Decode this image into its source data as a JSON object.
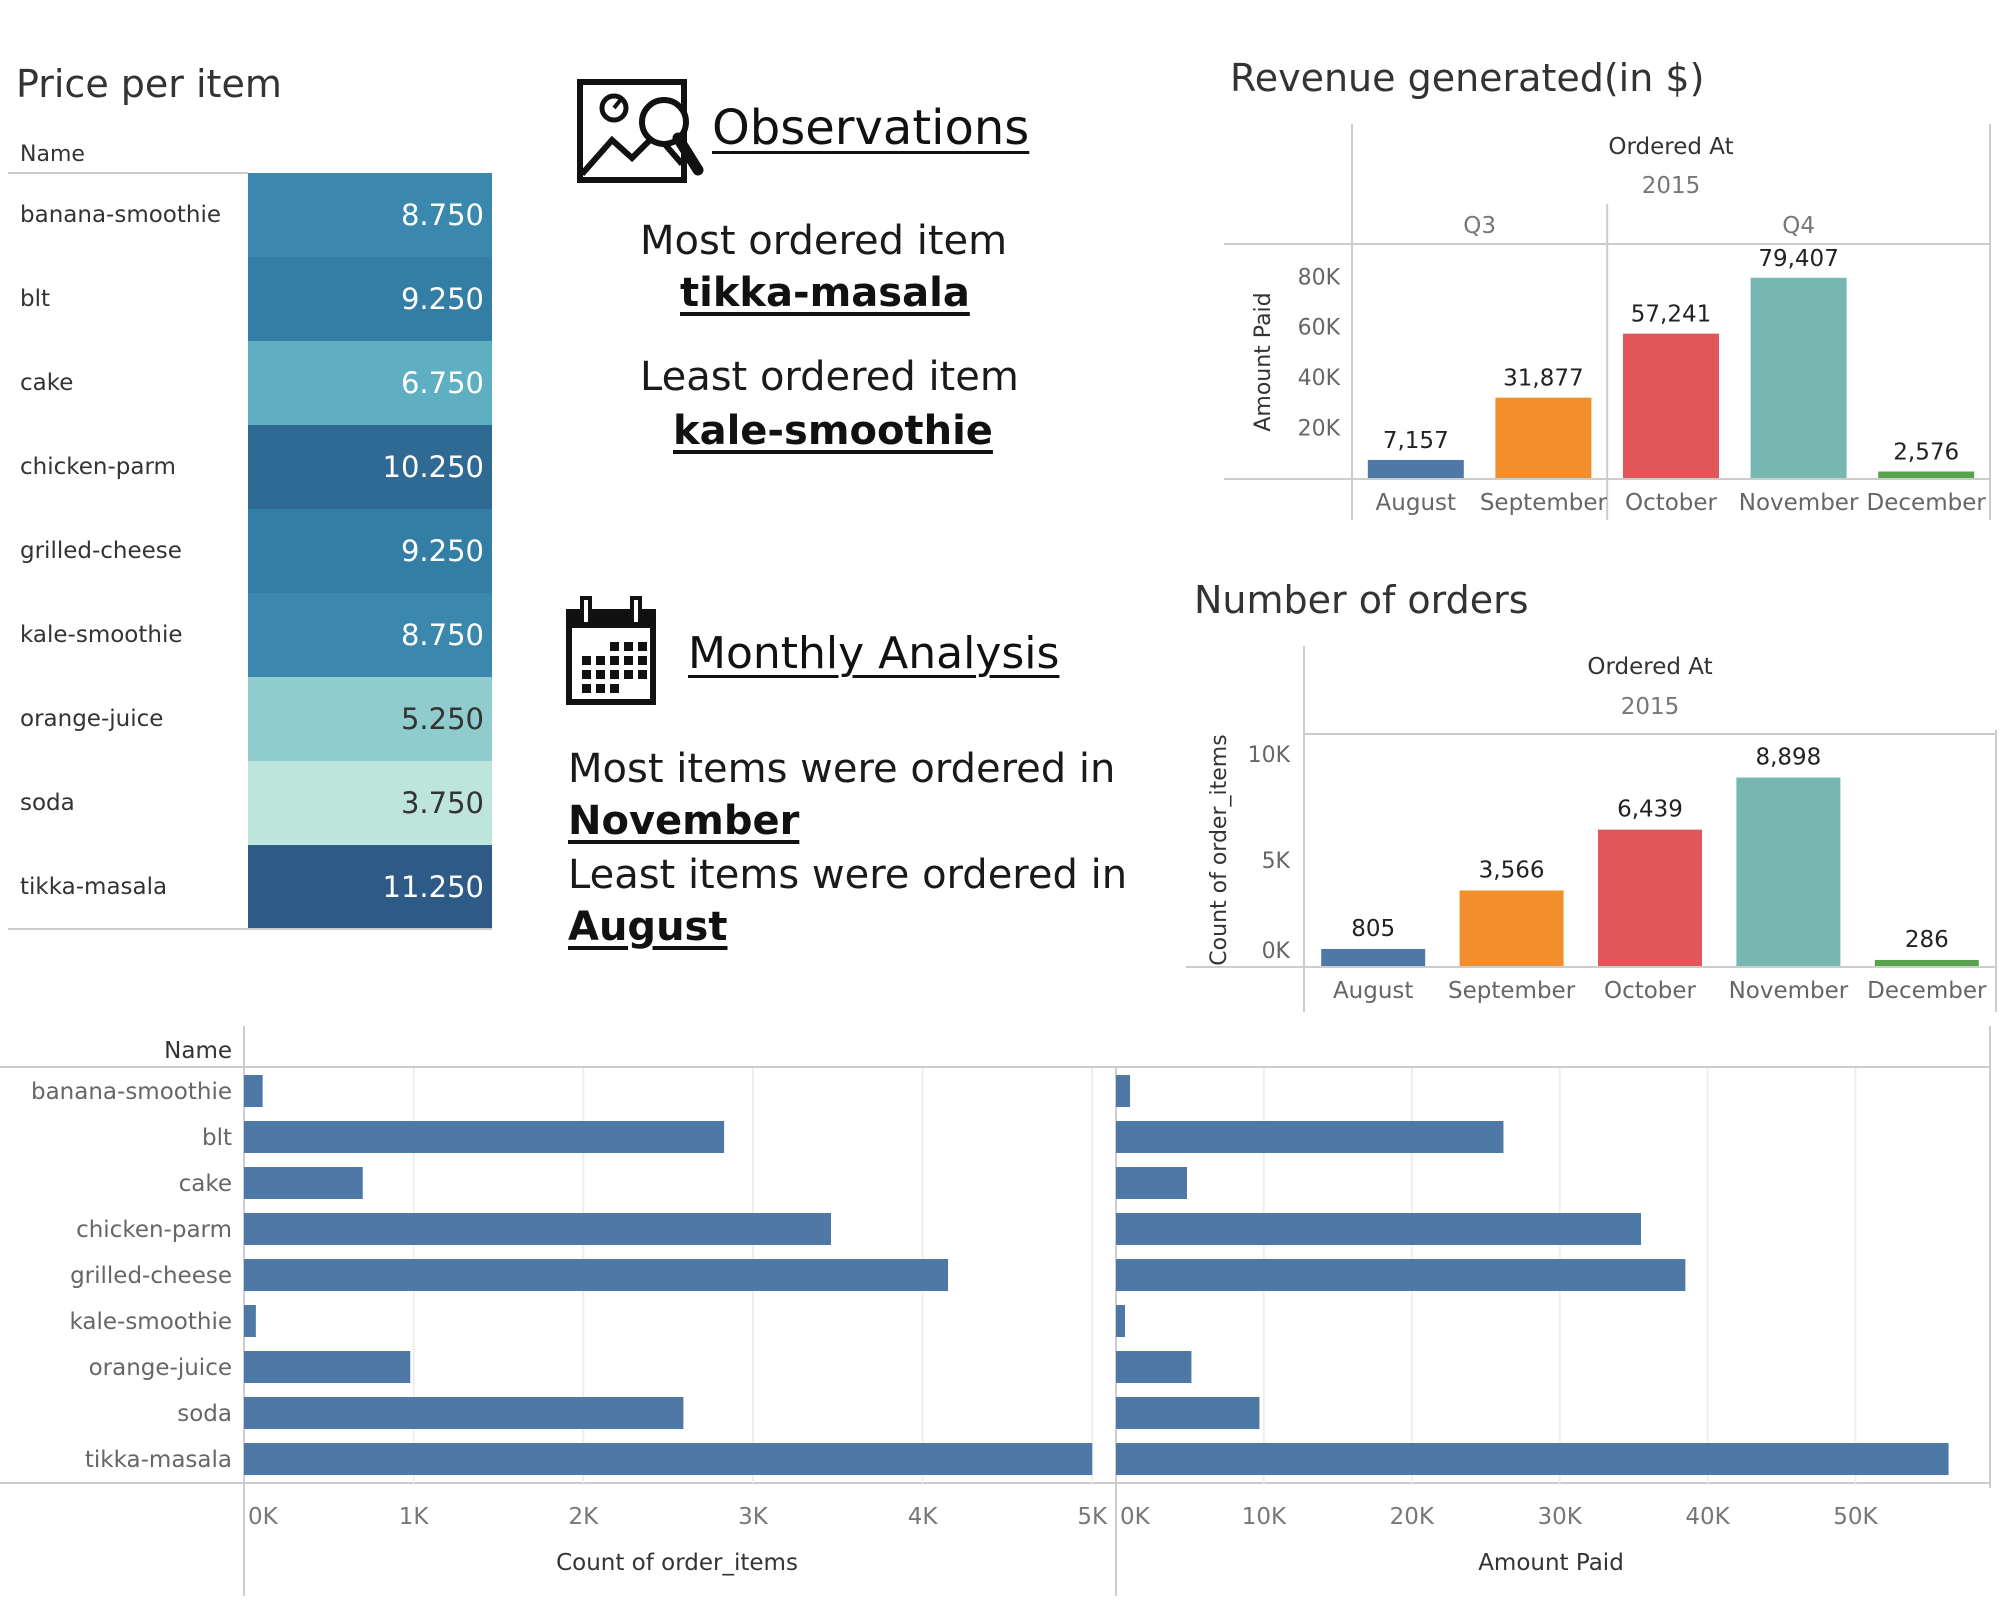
{
  "price_panel": {
    "title": "Price per item",
    "column_header": "Name",
    "rows": [
      {
        "name": "banana-smoothie",
        "price": "8.750",
        "color": "#3a88ad",
        "text_dark": false
      },
      {
        "name": "blt",
        "price": "9.250",
        "color": "#327ea4",
        "text_dark": false
      },
      {
        "name": "cake",
        "price": "6.750",
        "color": "#5fafc2",
        "text_dark": false
      },
      {
        "name": "chicken-parm",
        "price": "10.250",
        "color": "#2f6a95",
        "text_dark": false
      },
      {
        "name": "grilled-cheese",
        "price": "9.250",
        "color": "#327ea4",
        "text_dark": false
      },
      {
        "name": "kale-smoothie",
        "price": "8.750",
        "color": "#3a88ad",
        "text_dark": false
      },
      {
        "name": "orange-juice",
        "price": "5.250",
        "color": "#8ecccd",
        "text_dark": true
      },
      {
        "name": "soda",
        "price": "3.750",
        "color": "#bde5dc",
        "text_dark": true
      },
      {
        "name": "tikka-masala",
        "price": "11.250",
        "color": "#2d5a86",
        "text_dark": false
      }
    ]
  },
  "observations": {
    "heading": "Observations",
    "icon": "image-search-icon",
    "most_label": "Most ordered item",
    "most_value": "tikka-masala",
    "least_label": "Least ordered item",
    "least_value": "kale-smoothie"
  },
  "monthly": {
    "heading": "Monthly Analysis",
    "icon": "calendar-icon",
    "most_label": "Most items were ordered in",
    "most_value": "November",
    "least_label": "Least items were ordered in",
    "least_value": "August"
  },
  "chart_data": [
    {
      "id": "revenue",
      "type": "bar",
      "title": "Revenue generated(in $)",
      "header": "Ordered At",
      "year": "2015",
      "groups": [
        {
          "label": "Q3",
          "categories": [
            "August",
            "September"
          ]
        },
        {
          "label": "Q4",
          "categories": [
            "October",
            "November",
            "December"
          ]
        }
      ],
      "categories": [
        "August",
        "September",
        "October",
        "November",
        "December"
      ],
      "values": [
        7157,
        31877,
        57241,
        79407,
        2576
      ],
      "value_labels": [
        "7,157",
        "31,877",
        "57,241",
        "79,407",
        "2,576"
      ],
      "colors": [
        "#4e79a7",
        "#f28e2b",
        "#e15759",
        "#76b7b2",
        "#59a14f"
      ],
      "ylabel": "Amount Paid",
      "ylim": [
        0,
        92000
      ],
      "yticks": [
        20000,
        40000,
        60000,
        80000
      ],
      "ytick_labels": [
        "20K",
        "40K",
        "60K",
        "80K"
      ]
    },
    {
      "id": "orders",
      "type": "bar",
      "title": "Number of orders",
      "header": "Ordered At",
      "year": "2015",
      "categories": [
        "August",
        "September",
        "October",
        "November",
        "December"
      ],
      "values": [
        805,
        3566,
        6439,
        8898,
        286
      ],
      "value_labels": [
        "805",
        "3,566",
        "6,439",
        "8,898",
        "286"
      ],
      "colors": [
        "#4e79a7",
        "#f28e2b",
        "#e15759",
        "#76b7b2",
        "#59a14f"
      ],
      "ylabel": "Count of order_items",
      "ylim": [
        0,
        10200
      ],
      "yticks": [
        0,
        5000,
        10000
      ],
      "ytick_labels": [
        "0K",
        "5K",
        "10K"
      ]
    },
    {
      "id": "items_count",
      "type": "bar",
      "orientation": "horizontal",
      "row_header": "Name",
      "categories": [
        "banana-smoothie",
        "blt",
        "cake",
        "chicken-parm",
        "grilled-cheese",
        "kale-smoothie",
        "orange-juice",
        "soda",
        "tikka-masala"
      ],
      "values": [
        110,
        2830,
        700,
        3460,
        4150,
        70,
        980,
        2590,
        5000
      ],
      "color": "#4e79a7",
      "xlabel": "Count of order_items",
      "xlim": [
        0,
        5140
      ],
      "xticks": [
        0,
        1000,
        2000,
        3000,
        4000,
        5000
      ],
      "xtick_labels": [
        "0K",
        "1K",
        "2K",
        "3K",
        "4K",
        "5K"
      ]
    },
    {
      "id": "items_paid",
      "type": "bar",
      "orientation": "horizontal",
      "categories": [
        "banana-smoothie",
        "blt",
        "cake",
        "chicken-parm",
        "grilled-cheese",
        "kale-smoothie",
        "orange-juice",
        "soda",
        "tikka-masala"
      ],
      "values": [
        950,
        26200,
        4800,
        35500,
        38500,
        610,
        5100,
        9700,
        56300
      ],
      "color": "#4e79a7",
      "xlabel": "Amount Paid",
      "xlim": [
        0,
        59100
      ],
      "xticks": [
        0,
        10000,
        20000,
        30000,
        40000,
        50000
      ],
      "xtick_labels": [
        "0K",
        "10K",
        "20K",
        "30K",
        "40K",
        "50K"
      ]
    }
  ]
}
